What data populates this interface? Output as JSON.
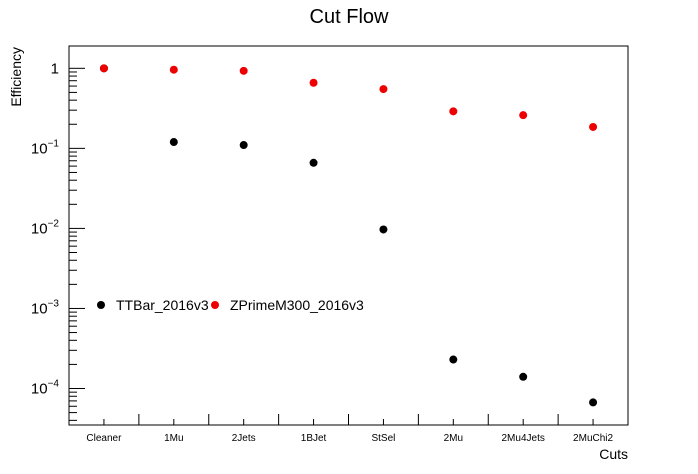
{
  "chart_data": {
    "type": "scatter",
    "title": "Cut Flow",
    "xlabel": "Cuts",
    "ylabel": "Efficiency",
    "yscale": "log",
    "ylim": [
      3.5e-05,
      1.9
    ],
    "categories": [
      "Cleaner",
      "1Mu",
      "2Jets",
      "1BJet",
      "StSel",
      "2Mu",
      "2Mu4Jets",
      "2MuChi2"
    ],
    "yticks": [
      {
        "value": 1,
        "base": "1",
        "exp": ""
      },
      {
        "value": 0.1,
        "base": "10",
        "exp": "−1"
      },
      {
        "value": 0.01,
        "base": "10",
        "exp": "−2"
      },
      {
        "value": 0.001,
        "base": "10",
        "exp": "−3"
      },
      {
        "value": 0.0001,
        "base": "10",
        "exp": "−4"
      }
    ],
    "legend": {
      "placement": "center-left"
    },
    "series": [
      {
        "name": "TTBar_2016v3",
        "color": "#000000",
        "values": [
          1.0,
          0.12,
          0.11,
          0.066,
          0.0097,
          0.00023,
          0.00014,
          6.7e-05
        ]
      },
      {
        "name": "ZPrimeM300_2016v3",
        "color": "#ee0000",
        "values": [
          1.0,
          0.96,
          0.93,
          0.66,
          0.55,
          0.29,
          0.26,
          0.185
        ]
      }
    ]
  }
}
